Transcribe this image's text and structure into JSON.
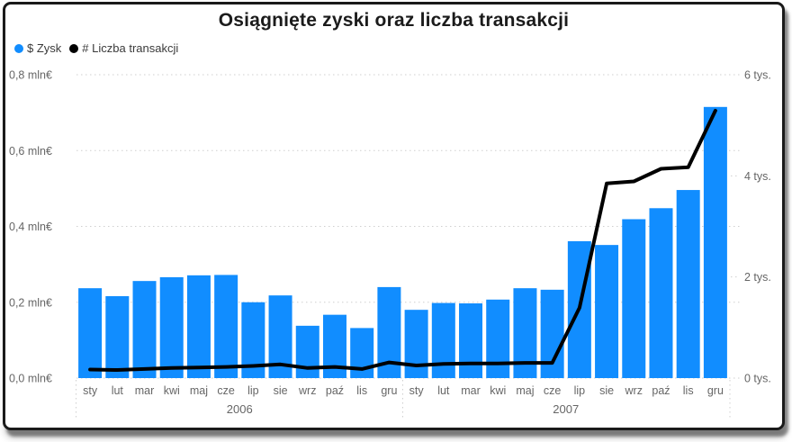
{
  "title": "Osiągnięte zyski oraz liczba transakcji",
  "legend": [
    {
      "label": "$ Zysk",
      "color": "#118DFF"
    },
    {
      "label": "# Liczba transakcji",
      "color": "#000000"
    }
  ],
  "chart_data": {
    "type": "combo-bar-line",
    "title": "Osiągnięte zyski oraz liczba transakcji",
    "categories": [
      "sty",
      "lut",
      "mar",
      "kwi",
      "maj",
      "cze",
      "lip",
      "sie",
      "wrz",
      "paź",
      "lis",
      "gru",
      "sty",
      "lut",
      "mar",
      "kwi",
      "maj",
      "cze",
      "lip",
      "sie",
      "wrz",
      "paź",
      "lis",
      "gru"
    ],
    "year_groups": [
      {
        "label": "2006",
        "start": 0,
        "end": 11
      },
      {
        "label": "2007",
        "start": 12,
        "end": 23
      }
    ],
    "series": [
      {
        "name": "$ Zysk",
        "type": "bar",
        "axis": "left",
        "unit": "mln€",
        "color": "#118DFF",
        "values": [
          0.237,
          0.216,
          0.256,
          0.266,
          0.271,
          0.272,
          0.2,
          0.218,
          0.138,
          0.167,
          0.132,
          0.24,
          0.18,
          0.198,
          0.197,
          0.207,
          0.237,
          0.233,
          0.361,
          0.351,
          0.419,
          0.448,
          0.496,
          0.715
        ]
      },
      {
        "name": "# Liczba transakcji",
        "type": "line",
        "axis": "right",
        "unit": "tys.",
        "color": "#000000",
        "values": [
          0.17,
          0.16,
          0.18,
          0.2,
          0.21,
          0.22,
          0.24,
          0.27,
          0.2,
          0.22,
          0.18,
          0.31,
          0.25,
          0.28,
          0.29,
          0.29,
          0.3,
          0.3,
          1.39,
          3.85,
          3.89,
          4.14,
          4.17,
          5.29
        ]
      }
    ],
    "left_axis": {
      "min": 0,
      "max": 0.8,
      "tick_step": 0.2,
      "tick_labels": [
        "0,0 mln€",
        "0,2 mln€",
        "0,4 mln€",
        "0,6 mln€",
        "0,8 mln€"
      ]
    },
    "right_axis": {
      "min": 0,
      "max": 6,
      "tick_step": 2,
      "tick_labels": [
        "0 tys.",
        "2 tys.",
        "4 tys.",
        "6 tys."
      ]
    },
    "grid": {
      "style": "dotted",
      "color": "#cfcfcf"
    },
    "text_colors": {
      "axis": "#666666",
      "category": "#666666"
    }
  }
}
